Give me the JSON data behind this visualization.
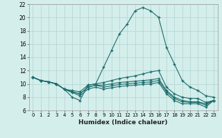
{
  "xlabel": "Humidex (Indice chaleur)",
  "bg_color": "#d4eeeb",
  "grid_color": "#b0d4d0",
  "line_color": "#1a6b6b",
  "xlim": [
    -0.5,
    23.5
  ],
  "ylim": [
    6,
    22
  ],
  "xticks": [
    0,
    1,
    2,
    3,
    4,
    5,
    6,
    7,
    8,
    9,
    10,
    11,
    12,
    13,
    14,
    15,
    16,
    17,
    18,
    19,
    20,
    21,
    22,
    23
  ],
  "yticks": [
    6,
    8,
    10,
    12,
    14,
    16,
    18,
    20,
    22
  ],
  "series": [
    [
      11.0,
      10.5,
      10.3,
      10.0,
      9.2,
      8.0,
      7.5,
      9.8,
      10.0,
      12.5,
      15.0,
      17.5,
      19.0,
      21.0,
      21.5,
      21.0,
      20.0,
      15.5,
      13.0,
      10.5,
      9.5,
      9.0,
      8.2,
      8.0
    ],
    [
      11.0,
      10.5,
      10.3,
      10.0,
      9.2,
      9.0,
      8.8,
      9.8,
      10.0,
      10.2,
      10.5,
      10.8,
      11.0,
      11.2,
      11.5,
      11.8,
      12.0,
      9.5,
      8.5,
      8.0,
      7.8,
      7.8,
      7.2,
      7.5
    ],
    [
      11.0,
      10.5,
      10.3,
      10.0,
      9.2,
      8.8,
      8.5,
      9.5,
      9.8,
      9.8,
      10.0,
      10.2,
      10.3,
      10.4,
      10.5,
      10.6,
      10.8,
      9.0,
      8.0,
      7.5,
      7.3,
      7.3,
      7.0,
      7.5
    ],
    [
      11.0,
      10.5,
      10.3,
      10.0,
      9.2,
      8.8,
      8.5,
      9.5,
      9.8,
      9.5,
      9.7,
      9.9,
      10.0,
      10.1,
      10.2,
      10.3,
      10.5,
      8.8,
      7.8,
      7.3,
      7.2,
      7.2,
      6.8,
      7.5
    ],
    [
      11.0,
      10.5,
      10.3,
      10.0,
      9.2,
      8.7,
      8.2,
      9.2,
      9.5,
      9.2,
      9.4,
      9.6,
      9.7,
      9.8,
      9.9,
      10.0,
      10.2,
      8.5,
      7.5,
      7.0,
      7.0,
      7.0,
      6.5,
      7.5
    ]
  ]
}
